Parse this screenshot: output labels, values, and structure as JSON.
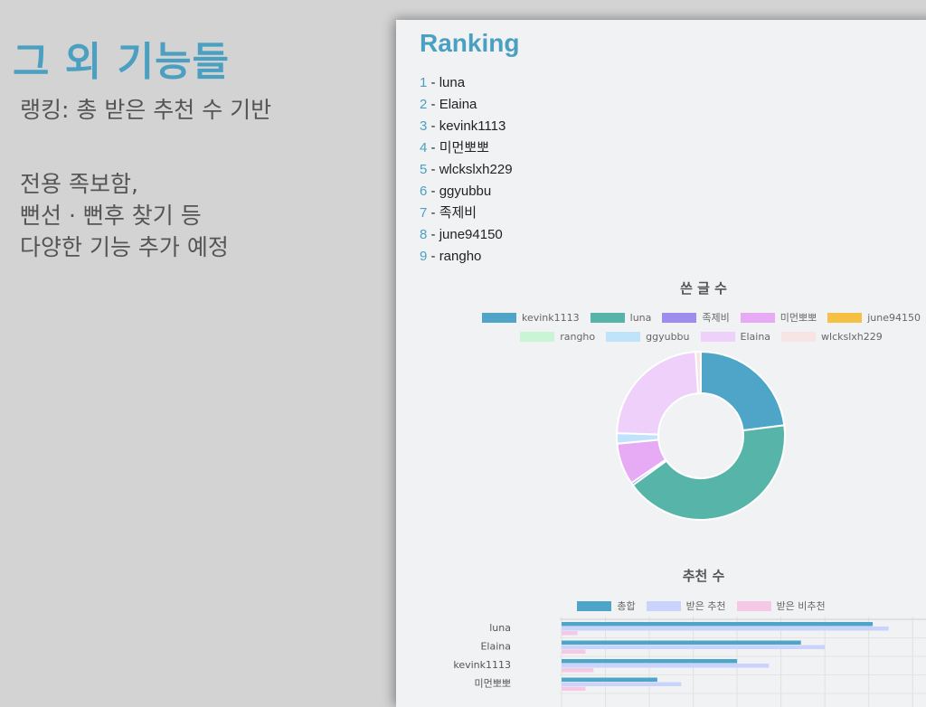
{
  "slide": {
    "title": "그 외 기능들",
    "line1": "랭킹: 총 받은 추천 수 기반",
    "line2": "전용 족보함,",
    "line3": "뻔선 · 뻔후 찾기 등",
    "line4": "다양한 기능 추가 예정"
  },
  "ranking": {
    "title": "Ranking",
    "items": [
      {
        "num": "1",
        "name": "luna"
      },
      {
        "num": "2",
        "name": "Elaina"
      },
      {
        "num": "3",
        "name": "kevink1113"
      },
      {
        "num": "4",
        "name": "미먼뽀뽀"
      },
      {
        "num": "5",
        "name": "wlckslxh229"
      },
      {
        "num": "6",
        "name": "ggyubbu"
      },
      {
        "num": "7",
        "name": "족제비"
      },
      {
        "num": "8",
        "name": "june94150"
      },
      {
        "num": "9",
        "name": "rangho"
      }
    ],
    "separator": " - "
  },
  "chart_data": [
    {
      "type": "pie",
      "title": "쓴 글 수",
      "categories": [
        "kevink1113",
        "luna",
        "족제비",
        "미먼뽀뽀",
        "june94150",
        "rangho",
        "ggyubbu",
        "Elaina",
        "wlckslxh229"
      ],
      "values": [
        23,
        42,
        0.5,
        8,
        0,
        0,
        2,
        23.5,
        1
      ],
      "colors": [
        "#4ea5c8",
        "#56b5a8",
        "#9e8cef",
        "#e7abf6",
        "#f5c044",
        "#c9f5d5",
        "#bfe3fb",
        "#efd0fb",
        "#f7e4e4"
      ]
    },
    {
      "type": "bar",
      "title": "추천 수",
      "categories": [
        "luna",
        "Elaina",
        "kevink1113",
        "미먼뽀뽀"
      ],
      "series": [
        {
          "name": "총합",
          "values": [
            39,
            30,
            22,
            12
          ],
          "color": "#4ea5c8"
        },
        {
          "name": "받은 추천",
          "values": [
            41,
            33,
            26,
            15
          ],
          "color": "#c9d3fb"
        },
        {
          "name": "받은 비추천",
          "values": [
            2,
            3,
            4,
            3
          ],
          "color": "#f5c9e6"
        }
      ],
      "xlim": [
        0,
        45
      ]
    }
  ]
}
